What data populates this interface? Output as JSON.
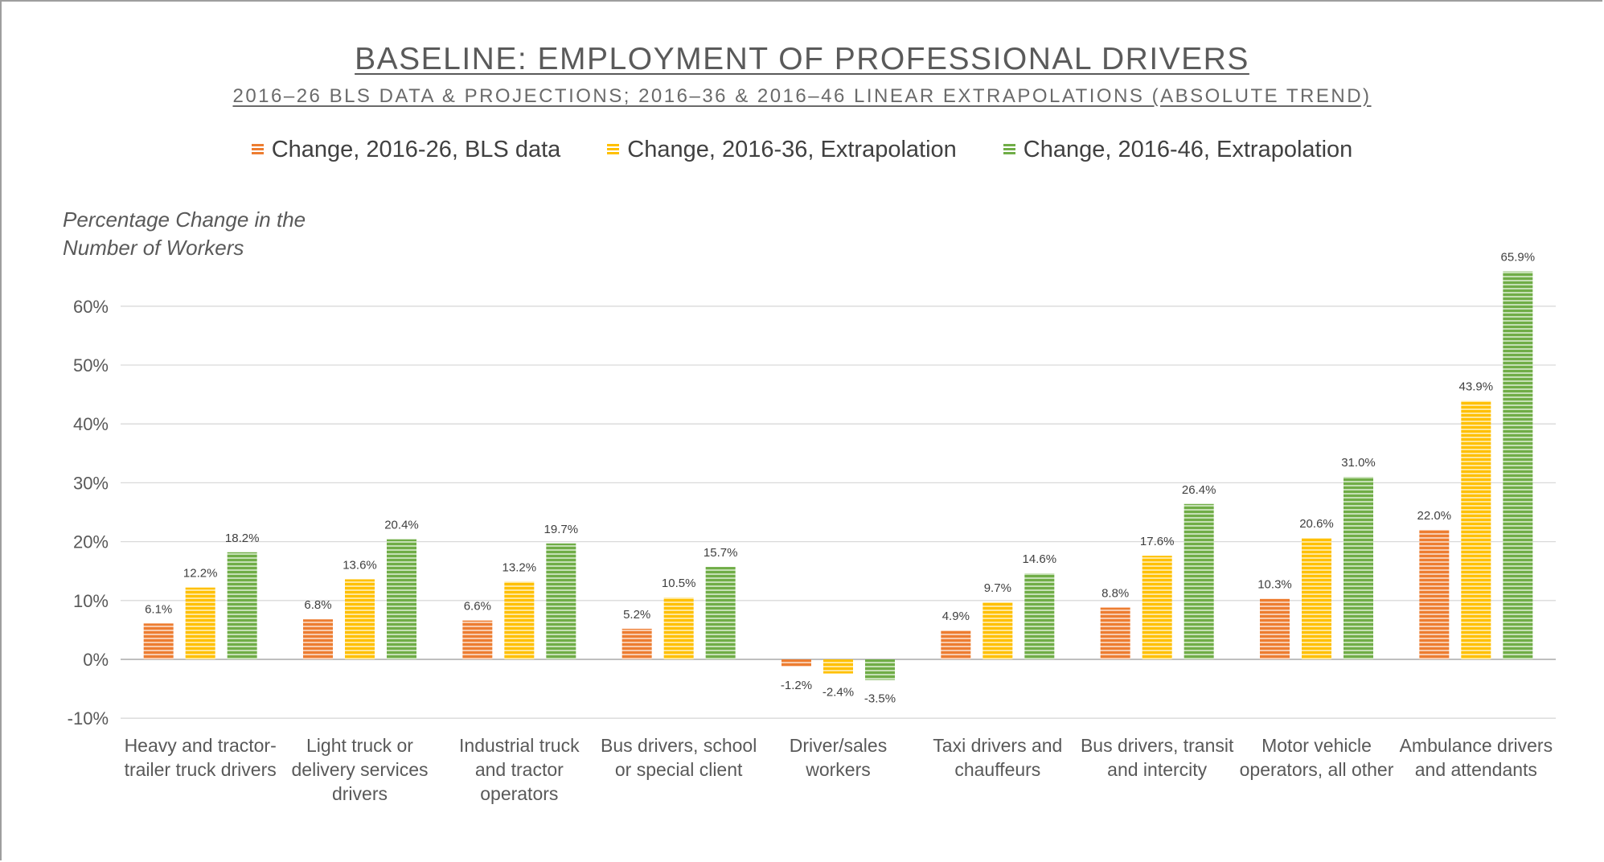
{
  "chart_data": {
    "type": "bar",
    "title": "BASELINE: EMPLOYMENT OF PROFESSIONAL DRIVERS",
    "subtitle": "2016–26 BLS DATA & PROJECTIONS; 2016–36 & 2016–46 LINEAR EXTRAPOLATIONS (ABSOLUTE TREND)",
    "ylabel_lines": [
      "Percentage Change in the",
      "Number of Workers"
    ],
    "xlabel": "",
    "ylim": [
      -10,
      70
    ],
    "yticks": [
      -10,
      0,
      10,
      20,
      30,
      40,
      50,
      60
    ],
    "ytick_labels": [
      "-10%",
      "0%",
      "10%",
      "20%",
      "30%",
      "40%",
      "50%",
      "60%"
    ],
    "grid": true,
    "legend_position": "top",
    "categories": [
      [
        "Heavy and tractor-",
        "trailer truck drivers"
      ],
      [
        "Light truck or",
        "delivery services",
        "drivers"
      ],
      [
        "Industrial truck",
        "and tractor",
        "operators"
      ],
      [
        "Bus drivers, school",
        "or special client"
      ],
      [
        "Driver/sales",
        "workers"
      ],
      [
        "Taxi drivers and",
        "chauffeurs"
      ],
      [
        "Bus drivers, transit",
        "and intercity"
      ],
      [
        "Motor vehicle",
        "operators, all other"
      ],
      [
        "Ambulance drivers",
        "and attendants"
      ]
    ],
    "series": [
      {
        "name": "Change, 2016-26, BLS data",
        "color": "#ED7D31",
        "values": [
          6.1,
          6.8,
          6.6,
          5.2,
          -1.2,
          4.9,
          8.8,
          10.3,
          22.0
        ],
        "labels": [
          "6.1%",
          "6.8%",
          "6.6%",
          "5.2%",
          "-1.2%",
          "4.9%",
          "8.8%",
          "10.3%",
          "22.0%"
        ]
      },
      {
        "name": "Change, 2016-36, Extrapolation",
        "color": "#FFC000",
        "values": [
          12.2,
          13.6,
          13.2,
          10.5,
          -2.4,
          9.7,
          17.6,
          20.6,
          43.9
        ],
        "labels": [
          "12.2%",
          "13.6%",
          "13.2%",
          "10.5%",
          "-2.4%",
          "9.7%",
          "17.6%",
          "20.6%",
          "43.9%"
        ]
      },
      {
        "name": "Change, 2016-46, Extrapolation",
        "color": "#70AD47",
        "values": [
          18.2,
          20.4,
          19.7,
          15.7,
          -3.5,
          14.6,
          26.4,
          31.0,
          65.9
        ],
        "labels": [
          "18.2%",
          "20.4%",
          "19.7%",
          "15.7%",
          "-3.5%",
          "14.6%",
          "26.4%",
          "31.0%",
          "65.9%"
        ]
      }
    ]
  }
}
